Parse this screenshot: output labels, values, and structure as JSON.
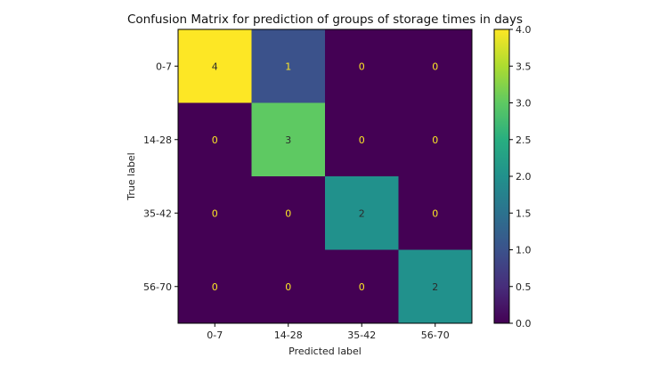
{
  "chart_data": {
    "type": "heatmap",
    "title": "Confusion Matrix for prediction of groups of storage times in days",
    "xlabel": "Predicted label",
    "ylabel": "True label",
    "x_categories": [
      "0-7",
      "14-28",
      "35-42",
      "56-70"
    ],
    "y_categories": [
      "0-7",
      "14-28",
      "35-42",
      "56-70"
    ],
    "values": [
      [
        4,
        1,
        0,
        0
      ],
      [
        0,
        3,
        0,
        0
      ],
      [
        0,
        0,
        2,
        0
      ],
      [
        0,
        0,
        0,
        2
      ]
    ],
    "colormap": "viridis",
    "colorbar": {
      "range": [
        0,
        4
      ],
      "ticks": [
        "0.0",
        "0.5",
        "1.0",
        "1.5",
        "2.0",
        "2.5",
        "3.0",
        "3.5",
        "4.0"
      ]
    },
    "grid": false
  }
}
